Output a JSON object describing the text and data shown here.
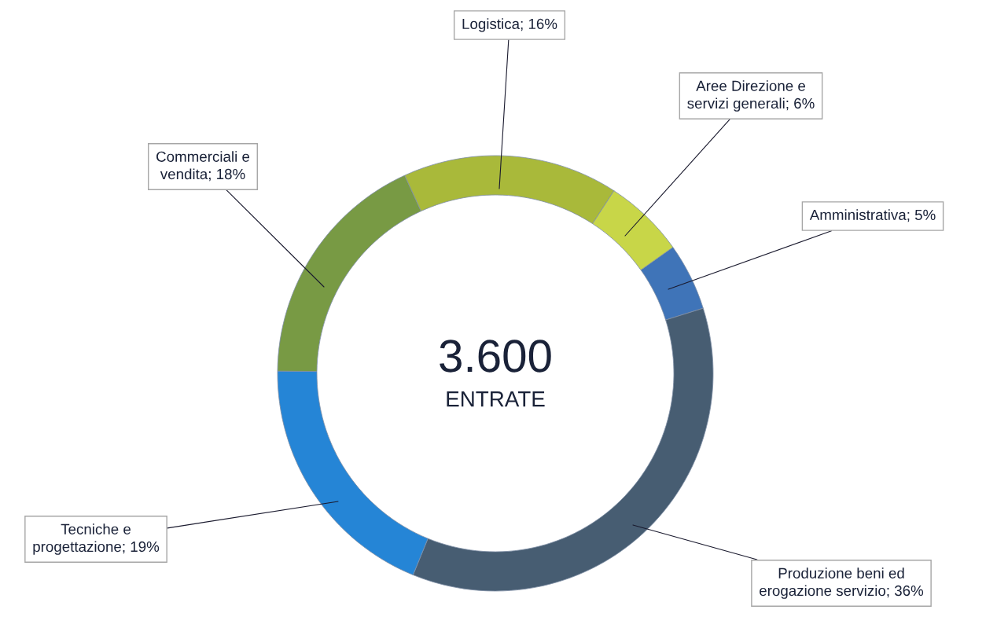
{
  "chart_data": {
    "type": "donut",
    "categories": [
      "Amministrativa",
      "Produzione beni ed erogazione servizio",
      "Tecniche e progettazione",
      "Commerciali e vendita",
      "Logistica",
      "Aree Direzione e servizi generali"
    ],
    "values": [
      5,
      36,
      19,
      18,
      16,
      6
    ],
    "colors": [
      "#3f74b8",
      "#475d72",
      "#2585d6",
      "#789a44",
      "#a9b93a",
      "#c8d648"
    ],
    "value_labels": [
      "5%",
      "36%",
      "19%",
      "18%",
      "16%",
      "6%"
    ],
    "annotations": [
      "3.600",
      "ENTRATE"
    ],
    "legend": false
  }
}
